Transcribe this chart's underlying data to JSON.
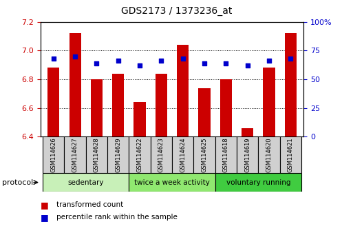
{
  "title": "GDS2173 / 1373236_at",
  "categories": [
    "GSM114626",
    "GSM114627",
    "GSM114628",
    "GSM114629",
    "GSM114622",
    "GSM114623",
    "GSM114624",
    "GSM114625",
    "GSM114618",
    "GSM114619",
    "GSM114620",
    "GSM114621"
  ],
  "red_values": [
    6.88,
    7.12,
    6.8,
    6.84,
    6.64,
    6.84,
    7.04,
    6.74,
    6.8,
    6.46,
    6.88,
    7.12
  ],
  "blue_values": [
    68,
    70,
    64,
    66,
    62,
    66,
    68,
    64,
    64,
    62,
    66,
    68
  ],
  "ylim_left": [
    6.4,
    7.2
  ],
  "ylim_right": [
    0,
    100
  ],
  "yticks_left": [
    6.4,
    6.6,
    6.8,
    7.0,
    7.2
  ],
  "yticks_right": [
    0,
    25,
    50,
    75,
    100
  ],
  "ytick_labels_right": [
    "0",
    "25",
    "50",
    "75",
    "100%"
  ],
  "groups": [
    {
      "label": "sedentary",
      "start": 0,
      "end": 4,
      "color": "#c8f0b8"
    },
    {
      "label": "twice a week activity",
      "start": 4,
      "end": 8,
      "color": "#90e870"
    },
    {
      "label": "voluntary running",
      "start": 8,
      "end": 12,
      "color": "#40cc40"
    }
  ],
  "protocol_label": "protocol",
  "red_color": "#cc0000",
  "blue_color": "#0000cc",
  "bar_width": 0.55,
  "legend_red": "transformed count",
  "legend_blue": "percentile rank within the sample",
  "background_color": "#ffffff",
  "grid_color": "#000000",
  "tick_color_left": "#cc0000",
  "tick_color_right": "#0000cc",
  "bar_bottom": 6.4
}
